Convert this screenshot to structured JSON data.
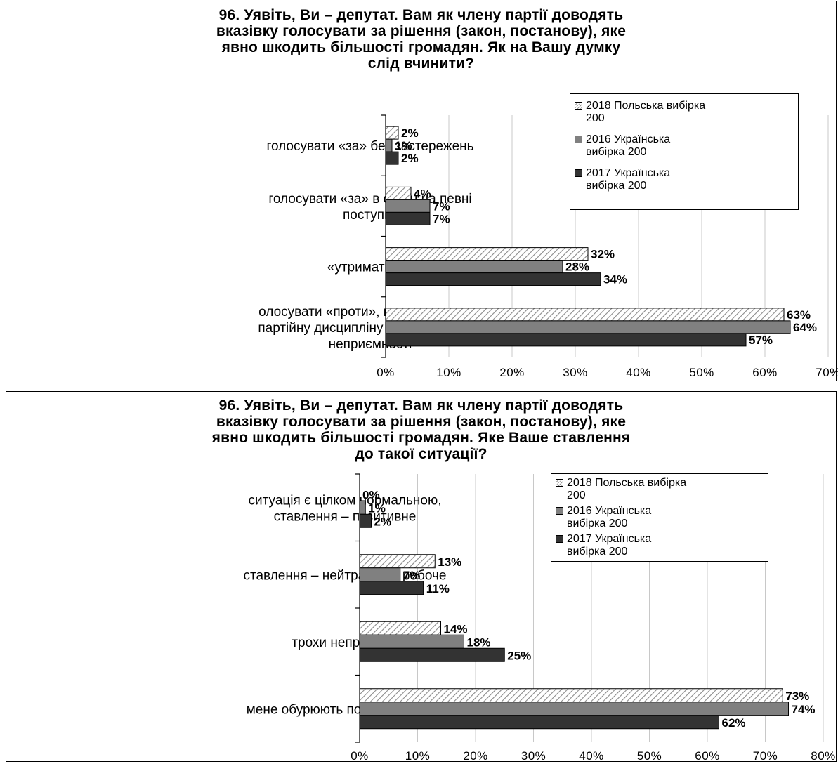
{
  "chart_data": [
    {
      "type": "bar",
      "orientation": "horizontal",
      "title_lines": [
        "96. Уявіть, Ви – депутат. Вам як члену партії доводять",
        "вказівку голосувати за рішення (закон, постанову), яке",
        "явно шкодить більшості громадян. Як на Вашу думку",
        "слід вчинити?"
      ],
      "categories": [
        [
          "голосувати «за» без застережень"
        ],
        [
          "голосувати «за» в обмін на певні",
          "поступки"
        ],
        [
          "«утриматись»"
        ],
        [
          "олосувати «проти», незважа-ючи на",
          "партійну дисципліну та інші можливі",
          "неприємності"
        ]
      ],
      "series": [
        {
          "name_lines": [
            "2018 Польська вибірка",
            "200"
          ],
          "values": [
            2,
            4,
            32,
            63
          ],
          "labels": [
            "2%",
            "4%",
            "32%",
            "63%"
          ]
        },
        {
          "name_lines": [
            "2016 Українська",
            "вибірка 200"
          ],
          "values": [
            1,
            7,
            28,
            64
          ],
          "labels": [
            "1%",
            "7%",
            "28%",
            "64%"
          ]
        },
        {
          "name_lines": [
            "2017 Українська",
            "вибірка 200"
          ],
          "values": [
            2,
            7,
            34,
            57
          ],
          "labels": [
            "2%",
            "7%",
            "34%",
            "57%"
          ]
        }
      ],
      "xlim": [
        0,
        70
      ],
      "ticks": [
        "0%",
        "10%",
        "20%",
        "30%",
        "40%",
        "50%",
        "60%",
        "70%"
      ],
      "grid": true,
      "legend": "top-right"
    },
    {
      "type": "bar",
      "orientation": "horizontal",
      "title_lines": [
        "96. Уявіть, Ви – депутат. Вам як члену партії доводять",
        "вказівку голосувати за рішення (закон, постанову), яке",
        "явно шкодить більшості громадян. Яке Ваше ставлення",
        "до такої ситуації?"
      ],
      "categories": [
        [
          "ситуація є цілком нормальною,",
          "ставлення – позитивне"
        ],
        [
          "ставлення – нейтральне, робоче"
        ],
        [
          "трохи неприємно"
        ],
        [
          "мене обурюють подібні вказівки"
        ]
      ],
      "series": [
        {
          "name_lines": [
            "2018 Польська вибірка",
            "200"
          ],
          "values": [
            0,
            13,
            14,
            73
          ],
          "labels": [
            "0%",
            "13%",
            "14%",
            "73%"
          ]
        },
        {
          "name_lines": [
            "2016 Українська",
            "вибірка 200"
          ],
          "values": [
            1,
            7,
            18,
            74
          ],
          "labels": [
            "1%",
            "7%",
            "18%",
            "74%"
          ]
        },
        {
          "name_lines": [
            "2017 Українська",
            "вибірка 200"
          ],
          "values": [
            2,
            11,
            25,
            62
          ],
          "labels": [
            "2%",
            "11%",
            "25%",
            "62%"
          ]
        }
      ],
      "xlim": [
        0,
        80
      ],
      "ticks": [
        "0%",
        "10%",
        "20%",
        "30%",
        "40%",
        "50%",
        "60%",
        "70%",
        "80%"
      ],
      "grid": true,
      "legend": "top-right"
    }
  ],
  "colors": {
    "series_2018_fill": "hatched-light",
    "series_2016_fill": "#808080",
    "series_2017_fill": "#333333",
    "grid": "#c8c8c8"
  }
}
